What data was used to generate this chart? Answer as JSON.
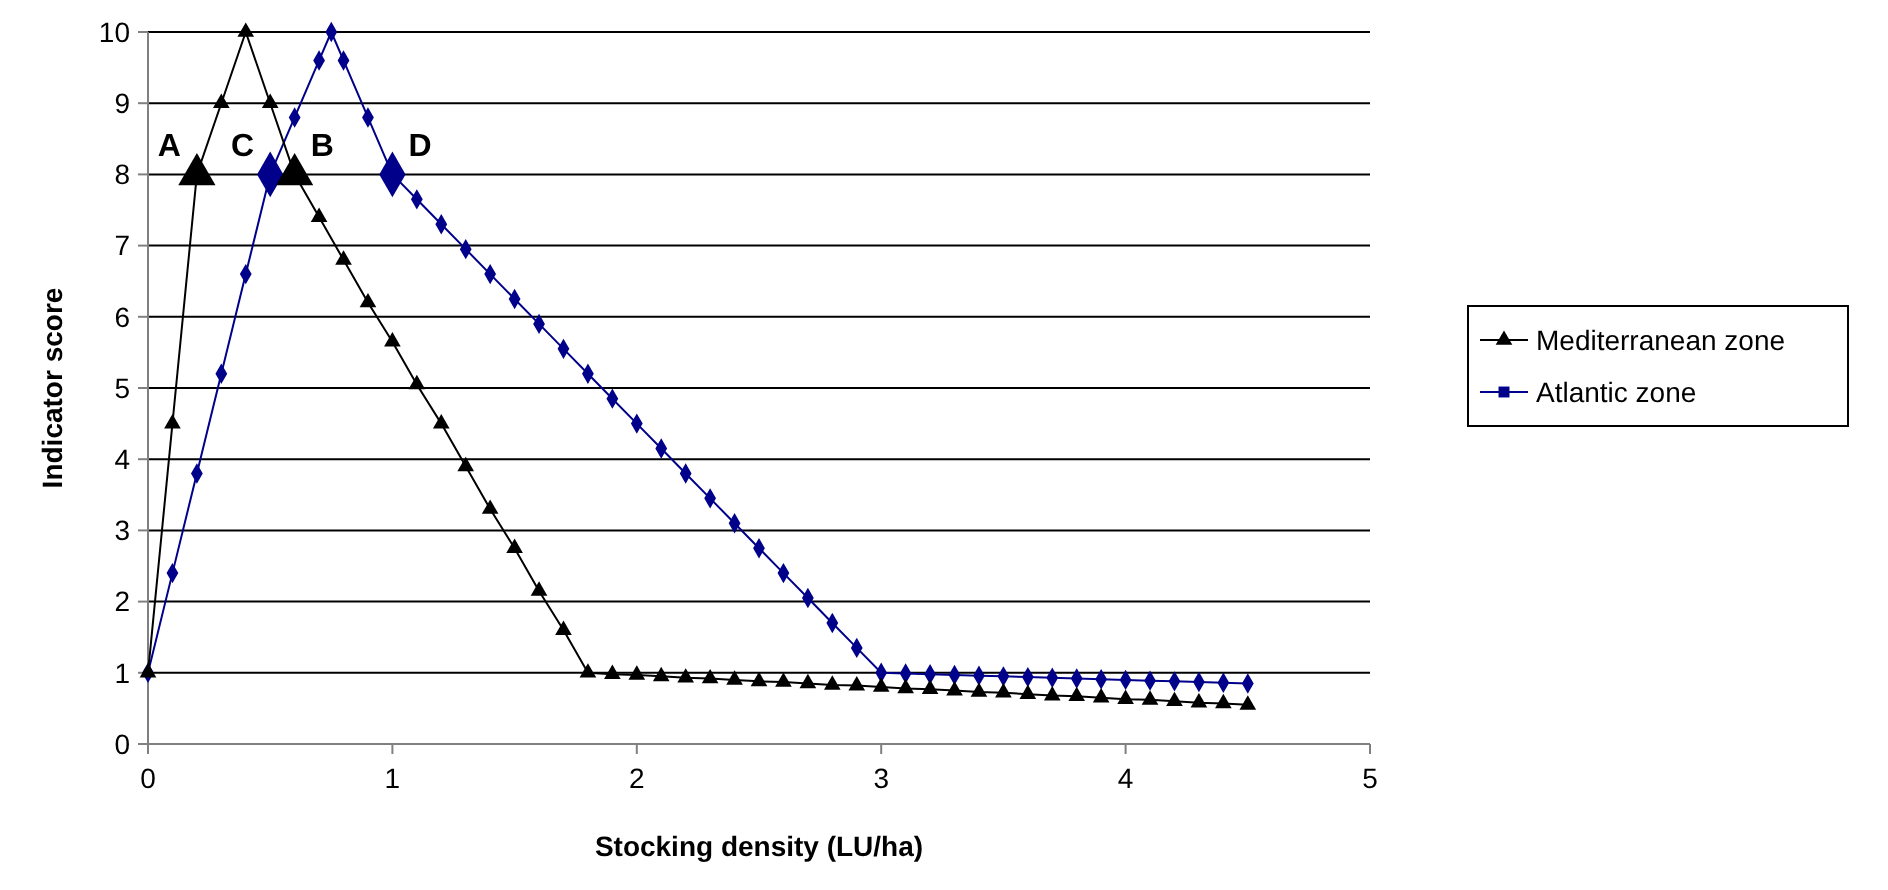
{
  "chart_data": {
    "type": "line",
    "xlabel": "Stocking density (LU/ha)",
    "ylabel": "Indicator score",
    "xlim": [
      0,
      5
    ],
    "xticks": [
      0,
      1,
      2,
      3,
      4,
      5
    ],
    "ylim": [
      0,
      10
    ],
    "yticks": [
      0,
      1,
      2,
      3,
      4,
      5,
      6,
      7,
      8,
      9,
      10
    ],
    "grid": "y",
    "legend": "right",
    "series": [
      {
        "name": "Mediterranean zone",
        "color": "#000000",
        "marker": "triangle",
        "x": [
          0,
          0.1,
          0.2,
          0.3,
          0.4,
          0.5,
          0.6,
          0.7,
          0.8,
          0.9,
          1.0,
          1.1,
          1.2,
          1.3,
          1.4,
          1.5,
          1.6,
          1.7,
          1.8,
          1.9,
          2.0,
          2.1,
          2.2,
          2.3,
          2.4,
          2.5,
          2.6,
          2.7,
          2.8,
          2.9,
          3.0,
          3.1,
          3.2,
          3.3,
          3.4,
          3.5,
          3.6,
          3.7,
          3.8,
          3.9,
          4.0,
          4.1,
          4.2,
          4.3,
          4.4,
          4.5
        ],
        "values": [
          1,
          4.5,
          8,
          9,
          10,
          9,
          8,
          7.4,
          6.8,
          6.2,
          5.65,
          5.05,
          4.5,
          3.9,
          3.3,
          2.75,
          2.15,
          1.6,
          1.0,
          0.98,
          0.97,
          0.95,
          0.93,
          0.92,
          0.9,
          0.88,
          0.87,
          0.85,
          0.83,
          0.82,
          0.8,
          0.78,
          0.77,
          0.75,
          0.73,
          0.72,
          0.7,
          0.68,
          0.67,
          0.65,
          0.63,
          0.62,
          0.6,
          0.58,
          0.57,
          0.55
        ]
      },
      {
        "name": "Atlantic zone",
        "color": "#00008b",
        "marker": "diamond",
        "x": [
          0,
          0.1,
          0.2,
          0.3,
          0.4,
          0.5,
          0.6,
          0.7,
          0.75,
          0.8,
          0.9,
          1.0,
          1.1,
          1.2,
          1.3,
          1.4,
          1.5,
          1.6,
          1.7,
          1.8,
          1.9,
          2.0,
          2.1,
          2.2,
          2.3,
          2.4,
          2.5,
          2.6,
          2.7,
          2.8,
          2.9,
          3.0,
          3.1,
          3.2,
          3.3,
          3.4,
          3.5,
          3.6,
          3.7,
          3.8,
          3.9,
          4.0,
          4.1,
          4.2,
          4.3,
          4.4,
          4.5
        ],
        "values": [
          1,
          2.4,
          3.8,
          5.2,
          6.6,
          8,
          8.8,
          9.6,
          10,
          9.6,
          8.8,
          8,
          7.65,
          7.3,
          6.95,
          6.6,
          6.25,
          5.9,
          5.55,
          5.2,
          4.85,
          4.5,
          4.15,
          3.8,
          3.45,
          3.1,
          2.75,
          2.4,
          2.05,
          1.7,
          1.35,
          1,
          0.99,
          0.98,
          0.97,
          0.96,
          0.95,
          0.94,
          0.93,
          0.92,
          0.91,
          0.9,
          0.89,
          0.88,
          0.87,
          0.86,
          0.85
        ]
      }
    ],
    "annotations": [
      {
        "text": "A",
        "x": 0.2,
        "y": 8
      },
      {
        "text": "B",
        "x": 0.6,
        "y": 8
      },
      {
        "text": "C",
        "x": 0.5,
        "y": 8
      },
      {
        "text": "D",
        "x": 1.0,
        "y": 8
      }
    ]
  }
}
